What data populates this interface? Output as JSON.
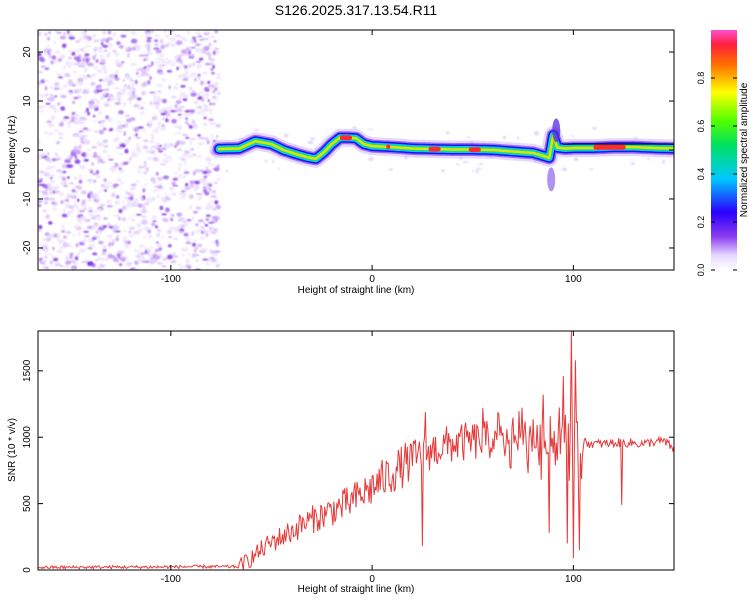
{
  "chart_data": [
    {
      "type": "heatmap",
      "title": "S126.2025.317.13.54.R11",
      "xlabel": "Height of straight line (km)",
      "ylabel": "Frequency (Hz)",
      "xlim": [
        -166,
        150
      ],
      "ylim": [
        -24.5,
        24.5
      ],
      "xticks": [
        -100,
        0,
        100
      ],
      "yticks": [
        -20,
        -10,
        0,
        10,
        20
      ],
      "colorbar": {
        "label": "Normalized spectral amplitude",
        "range": [
          0,
          1
        ],
        "ticks": [
          "0.0",
          "0.2",
          "0.4",
          "0.6",
          "0.8"
        ],
        "tick_values": [
          0,
          0.2,
          0.4,
          0.6,
          0.8
        ]
      },
      "noise_region_x": [
        -166,
        -76
      ],
      "signal_trace": {
        "x": [
          -76,
          -66,
          -58,
          -50,
          -44,
          -38,
          -32,
          -28,
          -24,
          -20,
          -16,
          -12,
          -8,
          -4,
          0,
          10,
          20,
          30,
          40,
          50,
          60,
          70,
          80,
          85,
          88,
          90,
          92,
          96,
          100,
          110,
          120,
          130,
          140,
          150
        ],
        "y": [
          0.2,
          0.3,
          1.8,
          1.2,
          0.0,
          -0.8,
          -1.5,
          -1.8,
          -0.5,
          1.2,
          2.5,
          2.5,
          2.4,
          1.2,
          0.8,
          0.6,
          0.3,
          0.2,
          0.1,
          0.1,
          0.0,
          -0.3,
          -0.6,
          -1.2,
          -1.6,
          3.0,
          0.5,
          0.3,
          0.4,
          0.4,
          0.6,
          0.6,
          0.4,
          0.3
        ]
      }
    },
    {
      "type": "line",
      "xlabel": "Height of straight line (km)",
      "ylabel": "SNR (10 * v/v)",
      "xlim": [
        -166,
        150
      ],
      "ylim": [
        0,
        1800
      ],
      "xticks": [
        -100,
        0,
        100
      ],
      "yticks": [
        0,
        500,
        1000,
        1500
      ],
      "color": "#e53a3a",
      "series": [
        {
          "name": "SNR",
          "x": [
            -166,
            -150,
            -130,
            -110,
            -90,
            -75,
            -66,
            -60,
            -55,
            -50,
            -45,
            -40,
            -35,
            -30,
            -25,
            -20,
            -15,
            -10,
            -5,
            0,
            5,
            10,
            15,
            20,
            25,
            30,
            35,
            40,
            45,
            50,
            55,
            60,
            65,
            70,
            75,
            80,
            85,
            90,
            95,
            100,
            105,
            110,
            115,
            120,
            125,
            130,
            135,
            140,
            145,
            150
          ],
          "y": [
            20,
            20,
            22,
            22,
            25,
            25,
            25,
            90,
            150,
            210,
            250,
            290,
            340,
            380,
            410,
            450,
            480,
            520,
            570,
            620,
            680,
            730,
            780,
            830,
            880,
            900,
            930,
            950,
            960,
            970,
            975,
            980,
            985,
            985,
            990,
            990,
            985,
            980,
            990,
            990,
            960,
            950,
            950,
            955,
            960,
            955,
            950,
            965,
            970,
            910
          ]
        }
      ],
      "spikes": [
        {
          "x": 25,
          "y": 180
        },
        {
          "x": 26.5,
          "y": 1190
        },
        {
          "x": 55,
          "y": 1220
        },
        {
          "x": 85,
          "y": 1320
        },
        {
          "x": 88,
          "y": 280
        },
        {
          "x": 95,
          "y": 1460
        },
        {
          "x": 97,
          "y": 200
        },
        {
          "x": 99,
          "y": 1800
        },
        {
          "x": 100,
          "y": 90
        },
        {
          "x": 101,
          "y": 1580
        },
        {
          "x": 103,
          "y": 150
        },
        {
          "x": 124,
          "y": 490
        }
      ]
    }
  ]
}
